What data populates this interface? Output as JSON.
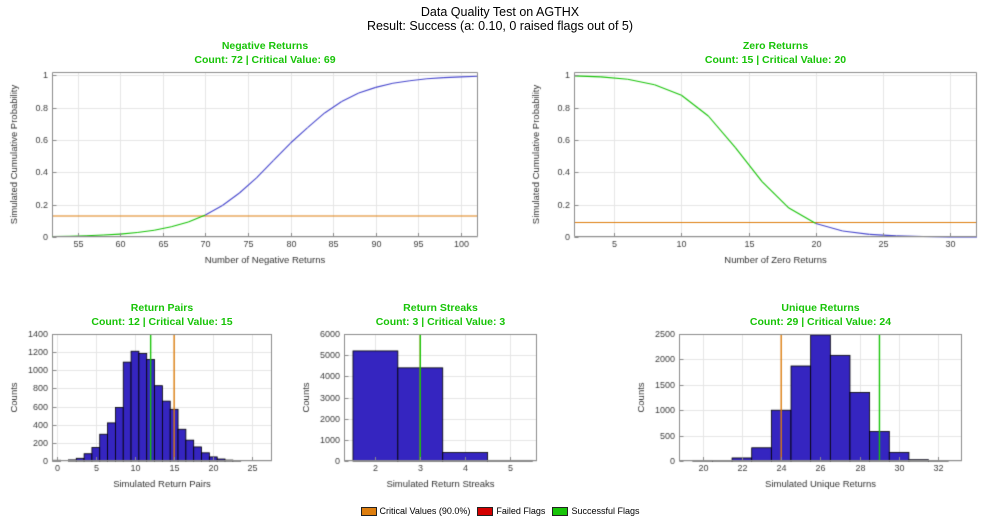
{
  "header": {
    "title": "Data Quality Test on AGTHX",
    "subtitle": "Result: Success (a: 0.10, 0 raised flags out of 5)"
  },
  "colors": {
    "critical": "#DE7E0E",
    "failed": "#D40000",
    "success": "#18C408",
    "curve": "#4848CE",
    "hist_fill": "#3525C0",
    "hist_edge": "#000000"
  },
  "legend": {
    "items": [
      {
        "label": "Critical Values (90.0%)",
        "color": "#DE7E0E"
      },
      {
        "label": "Failed Flags",
        "color": "#D40000"
      },
      {
        "label": "Successful Flags",
        "color": "#18C408"
      }
    ]
  },
  "chart_data": [
    {
      "id": "negative-returns",
      "type": "line",
      "title": "Negative Returns",
      "subtitle": "Count: 72 | Critical Value: 69",
      "xlabel": "Number of Negative Returns",
      "ylabel": "Simulated Cumulative Probability",
      "xlim": [
        52,
        102
      ],
      "ylim": [
        0,
        1.02
      ],
      "xticks": [
        55,
        60,
        65,
        70,
        75,
        80,
        85,
        90,
        95,
        100
      ],
      "yticks": [
        0,
        0.2,
        0.4,
        0.6,
        0.8,
        1
      ],
      "points": {
        "x": [
          52,
          54,
          56,
          58,
          60,
          62,
          64,
          66,
          68,
          70,
          72,
          74,
          76,
          78,
          80,
          82,
          84,
          86,
          88,
          90,
          92,
          94,
          96,
          98,
          100,
          102
        ],
        "y": [
          0.003,
          0.005,
          0.008,
          0.012,
          0.018,
          0.028,
          0.042,
          0.063,
          0.093,
          0.136,
          0.195,
          0.272,
          0.366,
          0.473,
          0.581,
          0.676,
          0.767,
          0.838,
          0.89,
          0.925,
          0.95,
          0.966,
          0.978,
          0.985,
          0.99,
          0.994
        ]
      },
      "split_x": 69,
      "hline": 0.13
    },
    {
      "id": "zero-returns",
      "type": "line",
      "title": "Zero Returns",
      "subtitle": "Count: 15 | Critical Value: 20",
      "xlabel": "Number of Zero Returns",
      "ylabel": "Simulated Cumulative Probability",
      "xlim": [
        2,
        32
      ],
      "ylim": [
        0,
        1.02
      ],
      "xticks": [
        5,
        10,
        15,
        20,
        25,
        30
      ],
      "yticks": [
        0,
        0.2,
        0.4,
        0.6,
        0.8,
        1
      ],
      "points": {
        "x": [
          2,
          4,
          6,
          8,
          10,
          12,
          14,
          16,
          18,
          20,
          22,
          24,
          26,
          28,
          30,
          32
        ],
        "y": [
          0.996,
          0.99,
          0.975,
          0.941,
          0.876,
          0.748,
          0.554,
          0.342,
          0.179,
          0.084,
          0.037,
          0.016,
          0.007,
          0.003,
          0.001,
          0.0005
        ]
      },
      "split_x": 20,
      "hline": 0.09
    },
    {
      "id": "return-pairs",
      "type": "bar",
      "title": "Return Pairs",
      "subtitle": "Count: 12 | Critical Value: 15",
      "xlabel": "Simulated Return Pairs",
      "ylabel": "Counts",
      "xlim": [
        -0.6,
        27.5
      ],
      "ylim": [
        0,
        1400
      ],
      "xticks": [
        0,
        5,
        10,
        15,
        20,
        25
      ],
      "yticks": [
        0,
        200,
        400,
        600,
        800,
        1000,
        1200,
        1400
      ],
      "bars": {
        "width": 1,
        "centers": [
          0,
          1,
          2,
          3,
          4,
          5,
          6,
          7,
          8,
          9,
          10,
          11,
          12,
          13,
          14,
          15,
          16,
          17,
          18,
          19,
          20,
          21,
          22,
          23
        ],
        "values": [
          8,
          0,
          12,
          30,
          80,
          150,
          295,
          420,
          590,
          1090,
          1210,
          1185,
          1120,
          830,
          660,
          570,
          350,
          230,
          155,
          90,
          45,
          22,
          10,
          4
        ]
      },
      "vlines": [
        {
          "x": 15,
          "color": "critical"
        },
        {
          "x": 12,
          "color": "success"
        }
      ]
    },
    {
      "id": "return-streaks",
      "type": "bar",
      "title": "Return Streaks",
      "subtitle": "Count: 3 | Critical Value: 3",
      "xlabel": "Simulated Return Streaks",
      "ylabel": "Counts",
      "xlim": [
        1.3,
        5.6
      ],
      "ylim": [
        0,
        6000
      ],
      "xticks": [
        2,
        3,
        4,
        5
      ],
      "yticks": [
        0,
        1000,
        2000,
        3000,
        4000,
        5000,
        6000
      ],
      "bars": {
        "width": 1,
        "centers": [
          2,
          3,
          4,
          5
        ],
        "values": [
          5200,
          4400,
          400,
          30
        ]
      },
      "vlines": [
        {
          "x": 3,
          "color": "critical"
        },
        {
          "x": 3,
          "color": "success"
        }
      ]
    },
    {
      "id": "unique-returns",
      "type": "bar",
      "title": "Unique Returns",
      "subtitle": "Count: 29 | Critical Value: 24",
      "xlabel": "Simulated Unique Returns",
      "ylabel": "Counts",
      "xlim": [
        18.8,
        33.2
      ],
      "ylim": [
        0,
        2500
      ],
      "xticks": [
        20,
        22,
        24,
        26,
        28,
        30,
        32
      ],
      "yticks": [
        0,
        500,
        1000,
        1500,
        2000,
        2500
      ],
      "bars": {
        "width": 1,
        "centers": [
          19,
          20,
          21,
          22,
          23,
          24,
          25,
          26,
          27,
          28,
          29,
          30,
          31,
          32
        ],
        "values": [
          0,
          12,
          4,
          60,
          260,
          1000,
          1870,
          2480,
          2080,
          1350,
          580,
          170,
          25,
          6
        ]
      },
      "vlines": [
        {
          "x": 24,
          "color": "critical"
        },
        {
          "x": 29,
          "color": "success"
        }
      ]
    }
  ]
}
